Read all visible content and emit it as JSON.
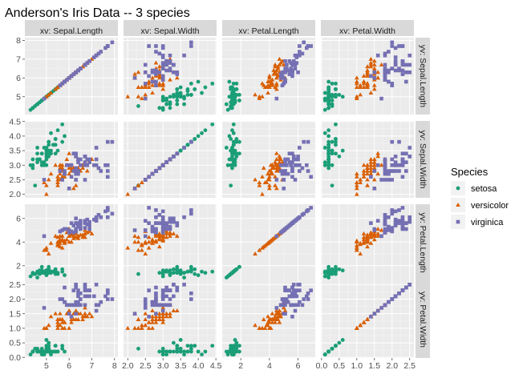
{
  "colors": {
    "setosa": "#1b9e77",
    "versicolor": "#d95f02",
    "virginica": "#7570b3"
  },
  "chart_data": {
    "type": "scatter",
    "title": "Anderson's Iris Data -- 3 species",
    "variables": [
      "Sepal.Length",
      "Sepal.Width",
      "Petal.Length",
      "Petal.Width"
    ],
    "column_strips": [
      "xv: Sepal.Length",
      "xv: Sepal.Width",
      "xv: Petal.Length",
      "xv: Petal.Width"
    ],
    "row_strips": [
      "yv: Sepal.Length",
      "yv: Sepal.Width",
      "yv: Petal.Length",
      "yv: Petal.Width"
    ],
    "axes": [
      {
        "name": "Sepal.Length",
        "range": [
          4.05,
          8.15
        ],
        "ticks": [
          5,
          6,
          7,
          8
        ],
        "x_tick_labels": [
          "5",
          "6",
          "7",
          "8"
        ],
        "y_tick_labels": [
          "5",
          "6",
          "7",
          "8"
        ]
      },
      {
        "name": "Sepal.Width",
        "range": [
          1.88,
          4.52
        ],
        "ticks": [
          2.0,
          2.5,
          3.0,
          3.5,
          4.0,
          4.5
        ],
        "x_tick_labels": [
          "2.0",
          "2.5",
          "3.0",
          "3.5",
          "4.0",
          "4.5"
        ],
        "y_tick_labels": [
          "2.0",
          "2.5",
          "3.0",
          "3.5",
          "4.0",
          "4.5"
        ]
      },
      {
        "name": "Petal.Length",
        "range": [
          0.7,
          7.2
        ],
        "ticks": [
          2,
          4,
          6
        ],
        "x_tick_labels": [
          "2",
          "4",
          "6"
        ],
        "y_tick_labels": [
          "2",
          "4",
          "6"
        ]
      },
      {
        "name": "Petal.Width",
        "range": [
          -0.02,
          2.62
        ],
        "ticks": [
          0.0,
          0.5,
          1.0,
          1.5,
          2.0,
          2.5
        ],
        "x_tick_labels": [
          "0.0",
          "0.5",
          "1.0",
          "1.5",
          "2.0",
          "2.5"
        ],
        "y_tick_labels": [
          "0.0",
          "0.5",
          "1.0",
          "1.5",
          "2.0",
          "2.5"
        ]
      }
    ],
    "legend": {
      "title": "Species",
      "position": "right",
      "entries": [
        {
          "label": "setosa",
          "shape": "circle"
        },
        {
          "label": "versicolor",
          "shape": "triangle"
        },
        {
          "label": "virginica",
          "shape": "square"
        }
      ]
    },
    "series": [
      {
        "name": "setosa",
        "shape": "circle",
        "points": [
          [
            5.1,
            3.5,
            1.4,
            0.2
          ],
          [
            4.9,
            3.0,
            1.4,
            0.2
          ],
          [
            4.7,
            3.2,
            1.3,
            0.2
          ],
          [
            4.6,
            3.1,
            1.5,
            0.2
          ],
          [
            5.0,
            3.6,
            1.4,
            0.2
          ],
          [
            5.4,
            3.9,
            1.7,
            0.4
          ],
          [
            4.6,
            3.4,
            1.4,
            0.3
          ],
          [
            5.0,
            3.4,
            1.5,
            0.2
          ],
          [
            4.4,
            2.9,
            1.4,
            0.2
          ],
          [
            4.9,
            3.1,
            1.5,
            0.1
          ],
          [
            5.4,
            3.7,
            1.5,
            0.2
          ],
          [
            4.8,
            3.4,
            1.6,
            0.2
          ],
          [
            4.8,
            3.0,
            1.4,
            0.1
          ],
          [
            4.3,
            3.0,
            1.1,
            0.1
          ],
          [
            5.8,
            4.0,
            1.2,
            0.2
          ],
          [
            5.7,
            4.4,
            1.5,
            0.4
          ],
          [
            5.4,
            3.9,
            1.3,
            0.4
          ],
          [
            5.1,
            3.5,
            1.4,
            0.3
          ],
          [
            5.7,
            3.8,
            1.7,
            0.3
          ],
          [
            5.1,
            3.8,
            1.5,
            0.3
          ],
          [
            5.4,
            3.4,
            1.7,
            0.2
          ],
          [
            5.1,
            3.7,
            1.5,
            0.4
          ],
          [
            4.6,
            3.6,
            1.0,
            0.2
          ],
          [
            5.1,
            3.3,
            1.7,
            0.5
          ],
          [
            4.8,
            3.4,
            1.9,
            0.2
          ],
          [
            5.0,
            3.0,
            1.6,
            0.2
          ],
          [
            5.0,
            3.4,
            1.6,
            0.4
          ],
          [
            5.2,
            3.5,
            1.5,
            0.2
          ],
          [
            5.2,
            3.4,
            1.4,
            0.2
          ],
          [
            4.7,
            3.2,
            1.6,
            0.2
          ],
          [
            4.8,
            3.1,
            1.6,
            0.2
          ],
          [
            5.4,
            3.4,
            1.5,
            0.4
          ],
          [
            5.2,
            4.1,
            1.5,
            0.1
          ],
          [
            5.5,
            4.2,
            1.4,
            0.2
          ],
          [
            4.9,
            3.1,
            1.5,
            0.2
          ],
          [
            5.0,
            3.2,
            1.2,
            0.2
          ],
          [
            5.5,
            3.5,
            1.3,
            0.2
          ],
          [
            4.9,
            3.6,
            1.4,
            0.1
          ],
          [
            4.4,
            3.0,
            1.3,
            0.2
          ],
          [
            5.1,
            3.4,
            1.5,
            0.2
          ],
          [
            5.0,
            3.5,
            1.3,
            0.3
          ],
          [
            4.5,
            2.3,
            1.3,
            0.3
          ],
          [
            4.4,
            3.2,
            1.3,
            0.2
          ],
          [
            5.0,
            3.5,
            1.6,
            0.6
          ],
          [
            5.1,
            3.8,
            1.9,
            0.4
          ],
          [
            4.8,
            3.0,
            1.4,
            0.3
          ],
          [
            5.1,
            3.8,
            1.6,
            0.2
          ],
          [
            4.6,
            3.2,
            1.4,
            0.2
          ],
          [
            5.3,
            3.7,
            1.5,
            0.2
          ],
          [
            5.0,
            3.3,
            1.4,
            0.2
          ]
        ]
      },
      {
        "name": "versicolor",
        "shape": "triangle",
        "points": [
          [
            7.0,
            3.2,
            4.7,
            1.4
          ],
          [
            6.4,
            3.2,
            4.5,
            1.5
          ],
          [
            6.9,
            3.1,
            4.9,
            1.5
          ],
          [
            5.5,
            2.3,
            4.0,
            1.3
          ],
          [
            6.5,
            2.8,
            4.6,
            1.5
          ],
          [
            5.7,
            2.8,
            4.5,
            1.3
          ],
          [
            6.3,
            3.3,
            4.7,
            1.6
          ],
          [
            4.9,
            2.4,
            3.3,
            1.0
          ],
          [
            6.6,
            2.9,
            4.6,
            1.3
          ],
          [
            5.2,
            2.7,
            3.9,
            1.4
          ],
          [
            5.0,
            2.0,
            3.5,
            1.0
          ],
          [
            5.9,
            3.0,
            4.2,
            1.5
          ],
          [
            6.0,
            2.2,
            4.0,
            1.0
          ],
          [
            6.1,
            2.9,
            4.7,
            1.4
          ],
          [
            5.6,
            2.9,
            3.6,
            1.3
          ],
          [
            6.7,
            3.1,
            4.4,
            1.4
          ],
          [
            5.6,
            3.0,
            4.5,
            1.5
          ],
          [
            5.8,
            2.7,
            4.1,
            1.0
          ],
          [
            6.2,
            2.2,
            4.5,
            1.5
          ],
          [
            5.6,
            2.5,
            3.9,
            1.1
          ],
          [
            5.9,
            3.2,
            4.8,
            1.8
          ],
          [
            6.1,
            2.8,
            4.0,
            1.3
          ],
          [
            6.3,
            2.5,
            4.9,
            1.5
          ],
          [
            6.1,
            2.8,
            4.7,
            1.2
          ],
          [
            6.4,
            2.9,
            4.3,
            1.3
          ],
          [
            6.6,
            3.0,
            4.4,
            1.4
          ],
          [
            6.8,
            2.8,
            4.8,
            1.4
          ],
          [
            6.7,
            3.0,
            5.0,
            1.7
          ],
          [
            6.0,
            2.9,
            4.5,
            1.5
          ],
          [
            5.7,
            2.6,
            3.5,
            1.0
          ],
          [
            5.5,
            2.4,
            3.8,
            1.1
          ],
          [
            5.5,
            2.4,
            3.7,
            1.0
          ],
          [
            5.8,
            2.7,
            3.9,
            1.2
          ],
          [
            6.0,
            2.7,
            5.1,
            1.6
          ],
          [
            5.4,
            3.0,
            4.5,
            1.5
          ],
          [
            6.0,
            3.4,
            4.5,
            1.6
          ],
          [
            6.7,
            3.1,
            4.7,
            1.5
          ],
          [
            6.3,
            2.3,
            4.4,
            1.3
          ],
          [
            5.6,
            3.0,
            4.1,
            1.3
          ],
          [
            5.5,
            2.5,
            4.0,
            1.3
          ],
          [
            5.5,
            2.6,
            4.4,
            1.2
          ],
          [
            6.1,
            3.0,
            4.6,
            1.4
          ],
          [
            5.8,
            2.6,
            4.0,
            1.2
          ],
          [
            5.0,
            2.3,
            3.3,
            1.0
          ],
          [
            5.6,
            2.7,
            4.2,
            1.3
          ],
          [
            5.7,
            3.0,
            4.2,
            1.2
          ],
          [
            5.7,
            2.9,
            4.2,
            1.3
          ],
          [
            6.2,
            2.9,
            4.3,
            1.3
          ],
          [
            5.1,
            2.5,
            3.0,
            1.1
          ],
          [
            5.7,
            2.8,
            4.1,
            1.3
          ]
        ]
      },
      {
        "name": "virginica",
        "shape": "square",
        "points": [
          [
            6.3,
            3.3,
            6.0,
            2.5
          ],
          [
            5.8,
            2.7,
            5.1,
            1.9
          ],
          [
            7.1,
            3.0,
            5.9,
            2.1
          ],
          [
            6.3,
            2.9,
            5.6,
            1.8
          ],
          [
            6.5,
            3.0,
            5.8,
            2.2
          ],
          [
            7.6,
            3.0,
            6.6,
            2.1
          ],
          [
            4.9,
            2.5,
            4.5,
            1.7
          ],
          [
            7.3,
            2.9,
            6.3,
            1.8
          ],
          [
            6.7,
            2.5,
            5.8,
            1.8
          ],
          [
            7.2,
            3.6,
            6.1,
            2.5
          ],
          [
            6.5,
            3.2,
            5.1,
            2.0
          ],
          [
            6.4,
            2.7,
            5.3,
            1.9
          ],
          [
            6.8,
            3.0,
            5.5,
            2.1
          ],
          [
            5.7,
            2.5,
            5.0,
            2.0
          ],
          [
            5.8,
            2.8,
            5.1,
            2.4
          ],
          [
            6.4,
            3.2,
            5.3,
            2.3
          ],
          [
            6.5,
            3.0,
            5.5,
            1.8
          ],
          [
            7.7,
            3.8,
            6.7,
            2.2
          ],
          [
            7.7,
            2.6,
            6.9,
            2.3
          ],
          [
            6.0,
            2.2,
            5.0,
            1.5
          ],
          [
            6.9,
            3.2,
            5.7,
            2.3
          ],
          [
            5.6,
            2.8,
            4.9,
            2.0
          ],
          [
            7.7,
            2.8,
            6.7,
            2.0
          ],
          [
            6.3,
            2.7,
            4.9,
            1.8
          ],
          [
            6.7,
            3.3,
            5.7,
            2.1
          ],
          [
            7.2,
            3.2,
            6.0,
            1.8
          ],
          [
            6.2,
            2.8,
            4.8,
            1.8
          ],
          [
            6.1,
            3.0,
            4.9,
            1.8
          ],
          [
            6.4,
            2.8,
            5.6,
            2.1
          ],
          [
            7.2,
            3.0,
            5.8,
            1.6
          ],
          [
            7.4,
            2.8,
            6.1,
            1.9
          ],
          [
            7.9,
            3.8,
            6.4,
            2.0
          ],
          [
            6.4,
            2.8,
            5.6,
            2.2
          ],
          [
            6.3,
            2.8,
            5.1,
            1.5
          ],
          [
            6.1,
            2.6,
            5.6,
            1.4
          ],
          [
            7.7,
            3.0,
            6.1,
            2.3
          ],
          [
            6.3,
            3.4,
            5.6,
            2.4
          ],
          [
            6.4,
            3.1,
            5.5,
            1.8
          ],
          [
            6.0,
            3.0,
            4.8,
            1.8
          ],
          [
            6.9,
            3.1,
            5.4,
            2.1
          ],
          [
            6.7,
            3.1,
            5.6,
            2.4
          ],
          [
            6.9,
            3.1,
            5.1,
            2.3
          ],
          [
            5.8,
            2.7,
            5.1,
            1.9
          ],
          [
            6.8,
            3.2,
            5.9,
            2.3
          ],
          [
            6.7,
            3.3,
            5.7,
            2.5
          ],
          [
            6.7,
            3.0,
            5.2,
            2.3
          ],
          [
            6.3,
            2.5,
            5.0,
            1.9
          ],
          [
            6.5,
            3.0,
            5.2,
            2.0
          ],
          [
            6.2,
            3.4,
            5.4,
            2.3
          ],
          [
            5.9,
            3.0,
            5.1,
            1.8
          ]
        ]
      }
    ]
  }
}
